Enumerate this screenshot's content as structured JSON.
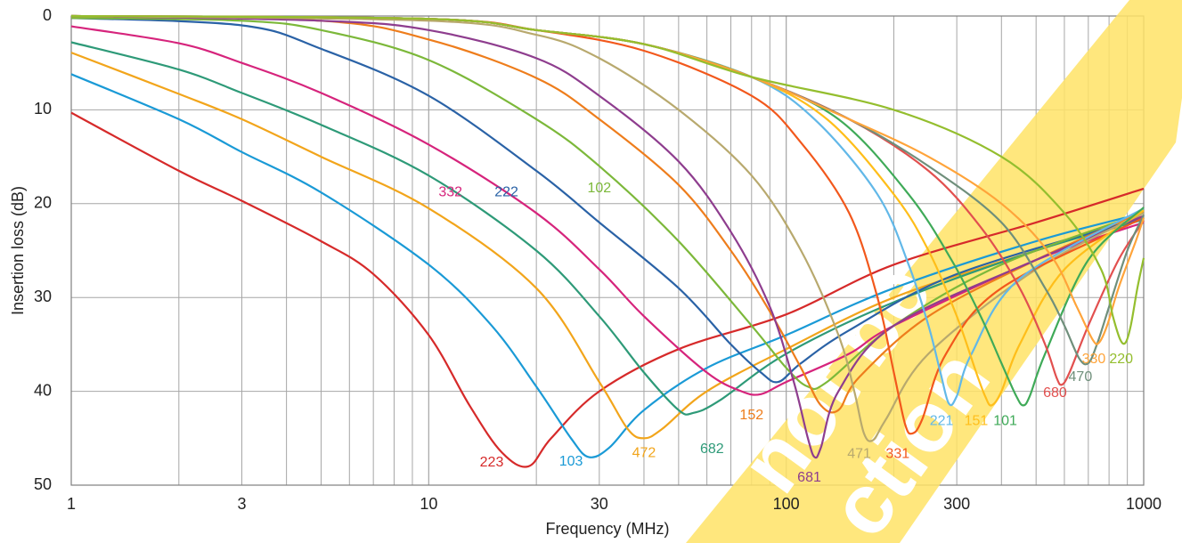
{
  "chart_data": {
    "type": "line",
    "xlabel": "Frequency (MHz)",
    "ylabel": "Insertion loss (dB)",
    "xscale": "log",
    "xlim": [
      1,
      1000
    ],
    "ylim": [
      0,
      50
    ],
    "yaxis_inverted": true,
    "grid": true,
    "legend": "none",
    "x_ticks": [
      {
        "value": 1,
        "label": "1"
      },
      {
        "value": 3,
        "label": "3"
      },
      {
        "value": 10,
        "label": "10"
      },
      {
        "value": 30,
        "label": "30"
      },
      {
        "value": 100,
        "label": "100"
      },
      {
        "value": 300,
        "label": "300"
      },
      {
        "value": 1000,
        "label": "1000"
      }
    ],
    "y_ticks": [
      {
        "value": 0,
        "label": "0"
      },
      {
        "value": 10,
        "label": "10"
      },
      {
        "value": 20,
        "label": "20"
      },
      {
        "value": 30,
        "label": "30"
      },
      {
        "value": 40,
        "label": "40"
      },
      {
        "value": 50,
        "label": "50"
      }
    ],
    "series": [
      {
        "name": "223",
        "color": "#d62a2a",
        "points": [
          [
            1,
            10.3
          ],
          [
            2,
            16.5
          ],
          [
            3,
            19.7
          ],
          [
            5,
            24
          ],
          [
            7,
            27.5
          ],
          [
            10,
            34
          ],
          [
            13,
            41.5
          ],
          [
            16,
            46.5
          ],
          [
            19,
            48
          ],
          [
            22,
            45
          ],
          [
            30,
            40
          ],
          [
            50,
            35.5
          ],
          [
            100,
            31.8
          ],
          [
            200,
            26.5
          ],
          [
            500,
            22
          ],
          [
            1000,
            18.4
          ]
        ],
        "label_at": [
          15,
          47.6
        ]
      },
      {
        "name": "103",
        "color": "#1a9ad6",
        "points": [
          [
            1,
            6.2
          ],
          [
            2,
            11
          ],
          [
            3,
            14.5
          ],
          [
            5,
            18.8
          ],
          [
            10,
            26.5
          ],
          [
            15,
            33
          ],
          [
            20,
            39.5
          ],
          [
            25,
            45
          ],
          [
            28,
            47
          ],
          [
            32,
            46
          ],
          [
            40,
            42
          ],
          [
            60,
            37.5
          ],
          [
            100,
            34
          ],
          [
            200,
            29
          ],
          [
            500,
            24
          ],
          [
            1000,
            21
          ]
        ],
        "label_at": [
          25,
          47.5
        ]
      },
      {
        "name": "472",
        "color": "#f2a51b",
        "points": [
          [
            1,
            3.9
          ],
          [
            2,
            8.3
          ],
          [
            3,
            11
          ],
          [
            5,
            15
          ],
          [
            10,
            20.5
          ],
          [
            20,
            29
          ],
          [
            30,
            39
          ],
          [
            36,
            44
          ],
          [
            40,
            45
          ],
          [
            45,
            44
          ],
          [
            60,
            40
          ],
          [
            100,
            35.5
          ],
          [
            200,
            30
          ],
          [
            500,
            25
          ],
          [
            1000,
            21.3
          ]
        ],
        "label_at": [
          40,
          46.6
        ]
      },
      {
        "name": "682",
        "color": "#2e9a78",
        "points": [
          [
            1,
            2.8
          ],
          [
            2,
            5.7
          ],
          [
            3,
            8.2
          ],
          [
            5,
            11.6
          ],
          [
            10,
            17
          ],
          [
            20,
            25
          ],
          [
            30,
            32
          ],
          [
            40,
            38
          ],
          [
            50,
            42
          ],
          [
            55,
            42.3
          ],
          [
            65,
            41
          ],
          [
            100,
            36
          ],
          [
            200,
            30.5
          ],
          [
            500,
            25
          ],
          [
            1000,
            21.7
          ]
        ],
        "label_at": [
          62,
          46.2
        ]
      },
      {
        "name": "332",
        "color": "#d6247c",
        "points": [
          [
            1,
            1.1
          ],
          [
            2,
            2.9
          ],
          [
            3,
            5
          ],
          [
            5,
            8.2
          ],
          [
            10,
            13.7
          ],
          [
            20,
            21
          ],
          [
            30,
            27
          ],
          [
            40,
            32
          ],
          [
            60,
            38
          ],
          [
            75,
            40
          ],
          [
            85,
            40.3
          ],
          [
            100,
            39
          ],
          [
            150,
            36
          ],
          [
            200,
            33
          ],
          [
            500,
            26
          ],
          [
            1000,
            22
          ]
        ],
        "label_at": [
          11.5,
          18.8
        ]
      },
      {
        "name": "222",
        "color": "#2a62a6",
        "points": [
          [
            1,
            0.2
          ],
          [
            3,
            1
          ],
          [
            5,
            3.5
          ],
          [
            10,
            8.5
          ],
          [
            20,
            16.5
          ],
          [
            30,
            22
          ],
          [
            50,
            29
          ],
          [
            70,
            35
          ],
          [
            85,
            38
          ],
          [
            95,
            39
          ],
          [
            110,
            37
          ],
          [
            150,
            33.5
          ],
          [
            300,
            27.5
          ],
          [
            1000,
            21.5
          ]
        ],
        "label_at": [
          16.5,
          18.8
        ]
      },
      {
        "name": "102",
        "color": "#7cb83a",
        "points": [
          [
            1,
            0.2
          ],
          [
            3,
            0.5
          ],
          [
            5,
            1.5
          ],
          [
            10,
            4.7
          ],
          [
            20,
            11
          ],
          [
            30,
            16
          ],
          [
            50,
            24
          ],
          [
            80,
            33
          ],
          [
            100,
            37.5
          ],
          [
            115,
            39.5
          ],
          [
            130,
            39
          ],
          [
            200,
            33
          ],
          [
            400,
            26.5
          ],
          [
            1000,
            21
          ]
        ],
        "label_at": [
          30,
          18.4
        ]
      },
      {
        "name": "152",
        "color": "#ee7d1c",
        "points": [
          [
            1,
            0
          ],
          [
            5,
            0.5
          ],
          [
            10,
            2.5
          ],
          [
            20,
            6.6
          ],
          [
            30,
            11
          ],
          [
            50,
            18
          ],
          [
            70,
            25
          ],
          [
            90,
            31.5
          ],
          [
            110,
            37.5
          ],
          [
            125,
            41.5
          ],
          [
            140,
            42
          ],
          [
            160,
            38.5
          ],
          [
            250,
            32
          ],
          [
            500,
            26
          ],
          [
            1000,
            20.8
          ]
        ],
        "label_at": [
          80,
          42.6
        ]
      },
      {
        "name": "681",
        "color": "#8e3d8e",
        "points": [
          [
            1,
            0
          ],
          [
            5,
            0.5
          ],
          [
            10,
            1.5
          ],
          [
            20,
            4.5
          ],
          [
            30,
            8.5
          ],
          [
            50,
            15.5
          ],
          [
            70,
            23
          ],
          [
            90,
            31
          ],
          [
            105,
            39
          ],
          [
            115,
            45
          ],
          [
            120,
            47
          ],
          [
            125,
            46
          ],
          [
            140,
            40
          ],
          [
            200,
            33
          ],
          [
            500,
            26
          ],
          [
            1000,
            21.3
          ]
        ],
        "label_at": [
          116,
          49.2
        ]
      },
      {
        "name": "471",
        "color": "#b8a96e",
        "points": [
          [
            1,
            0
          ],
          [
            10,
            0.5
          ],
          [
            20,
            2
          ],
          [
            30,
            4.5
          ],
          [
            50,
            10
          ],
          [
            80,
            17
          ],
          [
            110,
            25
          ],
          [
            140,
            34
          ],
          [
            155,
            40
          ],
          [
            165,
            44.5
          ],
          [
            175,
            45.2
          ],
          [
            190,
            43
          ],
          [
            250,
            36
          ],
          [
            500,
            27
          ],
          [
            1000,
            21
          ]
        ],
        "label_at": [
          160,
          46.7
        ]
      },
      {
        "name": "331",
        "color": "#f2581c",
        "points": [
          [
            1,
            0
          ],
          [
            10,
            0.3
          ],
          [
            20,
            1.5
          ],
          [
            40,
            3.7
          ],
          [
            80,
            8.5
          ],
          [
            110,
            13.5
          ],
          [
            150,
            21
          ],
          [
            180,
            30
          ],
          [
            200,
            38
          ],
          [
            215,
            43.5
          ],
          [
            225,
            44.5
          ],
          [
            240,
            43
          ],
          [
            280,
            36
          ],
          [
            400,
            29
          ],
          [
            1000,
            21.5
          ]
        ],
        "label_at": [
          205,
          46.7
        ]
      },
      {
        "name": "221",
        "color": "#62b8e8",
        "points": [
          [
            1,
            0
          ],
          [
            10,
            0.3
          ],
          [
            20,
            1.5
          ],
          [
            40,
            3
          ],
          [
            80,
            6.5
          ],
          [
            120,
            11
          ],
          [
            180,
            19
          ],
          [
            220,
            26.5
          ],
          [
            250,
            33
          ],
          [
            270,
            38
          ],
          [
            285,
            41.3
          ],
          [
            300,
            40.5
          ],
          [
            330,
            36
          ],
          [
            450,
            28
          ],
          [
            1000,
            20.5
          ]
        ],
        "label_at": [
          272,
          43.2
        ]
      },
      {
        "name": "151",
        "color": "#ffbe1a",
        "points": [
          [
            1,
            0
          ],
          [
            10,
            0.3
          ],
          [
            20,
            1.5
          ],
          [
            40,
            3
          ],
          [
            80,
            6.5
          ],
          [
            130,
            11
          ],
          [
            200,
            19
          ],
          [
            250,
            25
          ],
          [
            300,
            32
          ],
          [
            340,
            38
          ],
          [
            360,
            40.5
          ],
          [
            375,
            41.5
          ],
          [
            400,
            40
          ],
          [
            450,
            35
          ],
          [
            600,
            27
          ],
          [
            1000,
            20.7
          ]
        ],
        "label_at": [
          340,
          43.2
        ]
      },
      {
        "name": "101",
        "color": "#3faa58",
        "points": [
          [
            1,
            0
          ],
          [
            10,
            0.3
          ],
          [
            20,
            1.5
          ],
          [
            40,
            3
          ],
          [
            80,
            6.5
          ],
          [
            140,
            11
          ],
          [
            220,
            19
          ],
          [
            290,
            26
          ],
          [
            350,
            32
          ],
          [
            400,
            37
          ],
          [
            440,
            40.5
          ],
          [
            460,
            41.5
          ],
          [
            480,
            40.5
          ],
          [
            530,
            36
          ],
          [
            700,
            26
          ],
          [
            1000,
            20.4
          ]
        ],
        "label_at": [
          410,
          43.2
        ]
      },
      {
        "name": "680",
        "color": "#e2504f",
        "points": [
          [
            1,
            0
          ],
          [
            10,
            0.3
          ],
          [
            20,
            1.5
          ],
          [
            40,
            3
          ],
          [
            80,
            6.5
          ],
          [
            150,
            11
          ],
          [
            250,
            16.5
          ],
          [
            350,
            22.5
          ],
          [
            450,
            29
          ],
          [
            530,
            35
          ],
          [
            570,
            38.5
          ],
          [
            590,
            39.3
          ],
          [
            620,
            38
          ],
          [
            700,
            33
          ],
          [
            850,
            26
          ],
          [
            1000,
            21.8
          ]
        ],
        "label_at": [
          565,
          40.2
        ]
      },
      {
        "name": "470",
        "color": "#6f8f7b",
        "points": [
          [
            1,
            0
          ],
          [
            10,
            0.3
          ],
          [
            20,
            1.5
          ],
          [
            40,
            3
          ],
          [
            80,
            6.5
          ],
          [
            150,
            11
          ],
          [
            250,
            16
          ],
          [
            400,
            22
          ],
          [
            530,
            29
          ],
          [
            600,
            33
          ],
          [
            660,
            36.5
          ],
          [
            700,
            37
          ],
          [
            740,
            35
          ],
          [
            800,
            31
          ],
          [
            900,
            25
          ],
          [
            1000,
            21.2
          ]
        ],
        "label_at": [
          665,
          38.5
        ]
      },
      {
        "name": "330",
        "color": "#ffa43a",
        "points": [
          [
            1,
            0
          ],
          [
            10,
            0.3
          ],
          [
            20,
            1.5
          ],
          [
            40,
            3
          ],
          [
            80,
            6.5
          ],
          [
            150,
            11
          ],
          [
            250,
            15
          ],
          [
            400,
            20
          ],
          [
            550,
            25.5
          ],
          [
            650,
            31
          ],
          [
            720,
            34.5
          ],
          [
            750,
            34.8
          ],
          [
            790,
            33
          ],
          [
            850,
            29
          ],
          [
            950,
            24
          ],
          [
            1000,
            21.5
          ]
        ],
        "label_at": [
          725,
          36.6
        ]
      },
      {
        "name": "220",
        "color": "#94be2e",
        "points": [
          [
            1,
            0
          ],
          [
            10,
            0.3
          ],
          [
            20,
            1.5
          ],
          [
            40,
            3
          ],
          [
            80,
            6.5
          ],
          [
            200,
            10
          ],
          [
            400,
            15
          ],
          [
            600,
            21
          ],
          [
            760,
            27
          ],
          [
            820,
            32
          ],
          [
            860,
            34.5
          ],
          [
            890,
            34.8
          ],
          [
            920,
            33
          ],
          [
            960,
            29
          ],
          [
            1000,
            25.8
          ]
        ],
        "label_at": [
          865,
          36.6
        ]
      }
    ]
  },
  "watermark": {
    "color": "#ffe366",
    "lines": [
      "not be",
      "ction"
    ]
  }
}
